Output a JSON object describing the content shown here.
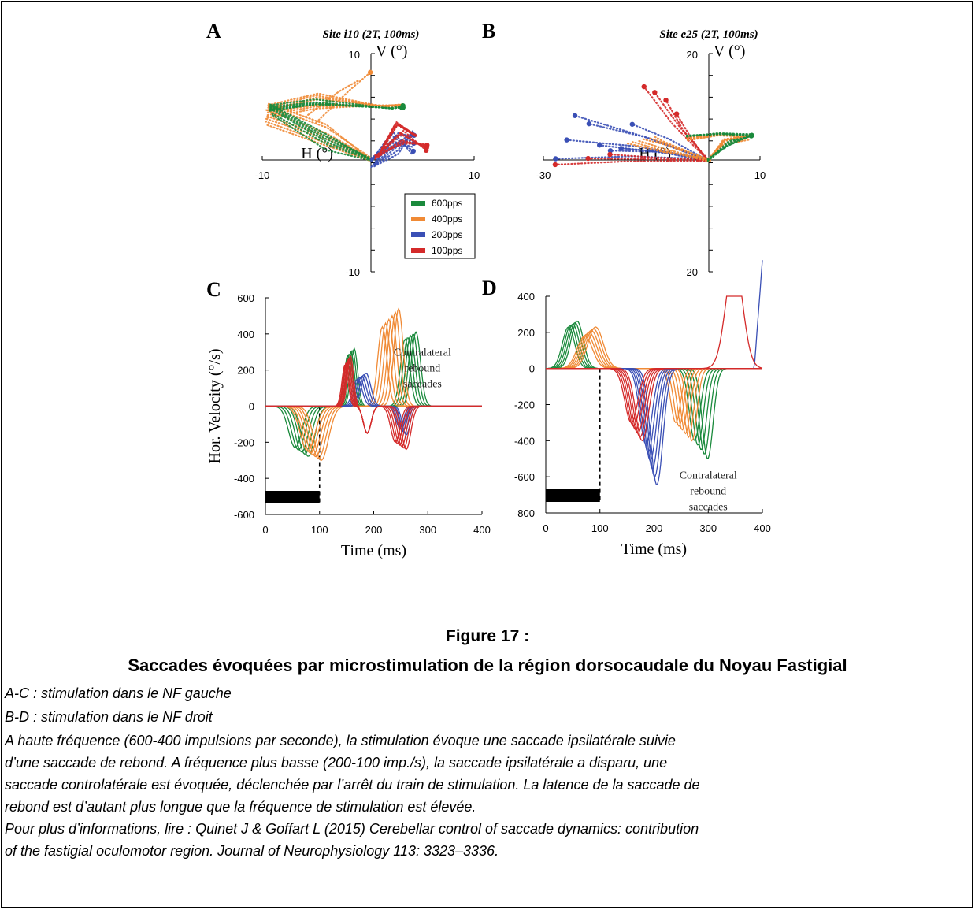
{
  "caption": {
    "figure_number": "Figure 17 :",
    "title": "Saccades évoquées par microstimulation de la région dorsocaudale du Noyau Fastigial",
    "lines": [
      "A-C : stimulation dans le NF gauche",
      "B-D : stimulation dans le NF droit",
      "A haute fréquence (600-400 impulsions par seconde), la stimulation évoque une saccade ipsilatérale suivie",
      "d’une saccade de rebond. A fréquence plus basse (200-100 imp./s), la saccade ipsilatérale a disparu, une",
      "saccade controlatérale est évoquée, déclenchée par l’arrêt du train de stimulation. La latence de la saccade de",
      "rebond est d’autant plus longue que la fréquence de stimulation est élevée.",
      "Pour plus d’informations, lire : Quinet J & Goffart L (2015) Cerebellar control of saccade dynamics: contribution",
      "of the fastigial oculomotor region. Journal of Neurophysiology 113: 3323–3336."
    ]
  },
  "legend": {
    "entries": [
      {
        "label": "600pps",
        "color": "#1a8a3c"
      },
      {
        "label": "400pps",
        "color": "#f08a35"
      },
      {
        "label": "200pps",
        "color": "#3a4fb5"
      },
      {
        "label": "100pps",
        "color": "#d42a2a"
      }
    ]
  },
  "chart_data": [
    {
      "panel": "A",
      "type": "line",
      "title": "Site i10 (2T, 100ms)",
      "xlabel": "H (°)",
      "ylabel": "V (°)",
      "xlim": [
        -10,
        10
      ],
      "ylim": [
        -10,
        10
      ],
      "x_ticks": [
        "-10",
        "10"
      ],
      "y_ticks": [
        "10",
        "-10"
      ],
      "series": [
        {
          "name": "600pps",
          "color": "#1a8a3c",
          "values": [
            [
              0,
              0
            ],
            [
              -9.5,
              4.5
            ],
            [
              -5,
              5
            ],
            [
              3,
              5
            ]
          ]
        },
        {
          "name": "400pps",
          "color": "#f08a35",
          "values": [
            [
              0,
              0
            ],
            [
              -9,
              4
            ],
            [
              -6,
              6
            ],
            [
              0,
              8
            ]
          ]
        },
        {
          "name": "200pps",
          "color": "#3a4fb5",
          "values": [
            [
              0,
              0
            ],
            [
              2,
              2
            ],
            [
              4,
              3
            ],
            [
              5,
              1
            ]
          ]
        },
        {
          "name": "100pps",
          "color": "#d42a2a",
          "values": [
            [
              0,
              0
            ],
            [
              3,
              2
            ],
            [
              5,
              2
            ],
            [
              6,
              1
            ]
          ]
        }
      ]
    },
    {
      "panel": "B",
      "type": "line",
      "title": "Site e25 (2T, 100ms)",
      "xlabel": "H (°)",
      "ylabel": "V (°)",
      "xlim": [
        -30,
        10
      ],
      "ylim": [
        -20,
        20
      ],
      "x_ticks": [
        "-30",
        "10"
      ],
      "y_ticks": [
        "20",
        "-20"
      ],
      "series": [
        {
          "name": "600pps",
          "color": "#1a8a3c",
          "values": [
            [
              0,
              0
            ],
            [
              3,
              4
            ],
            [
              8,
              4.5
            ]
          ]
        },
        {
          "name": "400pps",
          "color": "#f08a35",
          "values": [
            [
              0,
              0
            ],
            [
              -10,
              3
            ],
            [
              -3,
              5
            ],
            [
              7,
              4
            ]
          ]
        },
        {
          "name": "200pps",
          "color": "#3a4fb5",
          "values": [
            [
              0,
              0
            ],
            [
              -25,
              7
            ],
            [
              -20,
              1
            ],
            [
              -15,
              2
            ]
          ]
        },
        {
          "name": "100pps",
          "color": "#d42a2a",
          "values": [
            [
              0,
              0
            ],
            [
              -15,
              8
            ],
            [
              -10,
              11
            ],
            [
              -25,
              0
            ]
          ]
        }
      ]
    },
    {
      "panel": "C",
      "type": "line",
      "xlabel": "Time (ms)",
      "ylabel": "Hor. Velocity (°/s)",
      "xlim": [
        0,
        400
      ],
      "ylim": [
        -600,
        600
      ],
      "x_ticks": [
        "0",
        "100",
        "200",
        "300",
        "400"
      ],
      "y_ticks": [
        "600",
        "400",
        "200",
        "0",
        "-200",
        "-400",
        "-600"
      ],
      "stimulation_bar": [
        0,
        100
      ],
      "annotation": [
        "Contralateral",
        "rebound",
        "saccades"
      ],
      "series": [
        {
          "name": "600pps",
          "color": "#1a8a3c",
          "values": [
            [
              0,
              0
            ],
            [
              60,
              -250
            ],
            [
              160,
              300
            ],
            [
              265,
              400
            ],
            [
              400,
              0
            ]
          ]
        },
        {
          "name": "400pps",
          "color": "#f08a35",
          "values": [
            [
              0,
              0
            ],
            [
              80,
              -280
            ],
            [
              225,
              520
            ],
            [
              400,
              0
            ]
          ]
        },
        {
          "name": "200pps",
          "color": "#3a4fb5",
          "values": [
            [
              0,
              0
            ],
            [
              180,
              170
            ],
            [
              400,
              0
            ]
          ]
        },
        {
          "name": "100pps",
          "color": "#d42a2a",
          "values": [
            [
              0,
              0
            ],
            [
              150,
              270
            ],
            [
              185,
              -150
            ],
            [
              250,
              -250
            ],
            [
              400,
              0
            ]
          ]
        }
      ]
    },
    {
      "panel": "D",
      "type": "line",
      "xlabel": "Time (ms)",
      "xlim": [
        0,
        400
      ],
      "ylim": [
        -800,
        400
      ],
      "x_ticks": [
        "0",
        "100",
        "200",
        "300",
        "400"
      ],
      "y_ticks": [
        "400",
        "200",
        "0",
        "-200",
        "-400",
        "-600",
        "-800"
      ],
      "stimulation_bar": [
        0,
        100
      ],
      "annotation": [
        "Contralateral",
        "rebound",
        "saccades"
      ],
      "series": [
        {
          "name": "600pps",
          "color": "#1a8a3c",
          "values": [
            [
              0,
              0
            ],
            [
              45,
              240
            ],
            [
              285,
              -480
            ],
            [
              400,
              0
            ]
          ]
        },
        {
          "name": "400pps",
          "color": "#f08a35",
          "values": [
            [
              0,
              0
            ],
            [
              75,
              220
            ],
            [
              250,
              -380
            ],
            [
              400,
              0
            ]
          ]
        },
        {
          "name": "200pps",
          "color": "#3a4fb5",
          "values": [
            [
              0,
              0
            ],
            [
              195,
              -620
            ],
            [
              400,
              380
            ]
          ]
        },
        {
          "name": "100pps",
          "color": "#d42a2a",
          "values": [
            [
              0,
              0
            ],
            [
              160,
              -370
            ],
            [
              345,
              400
            ],
            [
              400,
              0
            ]
          ]
        }
      ]
    }
  ]
}
